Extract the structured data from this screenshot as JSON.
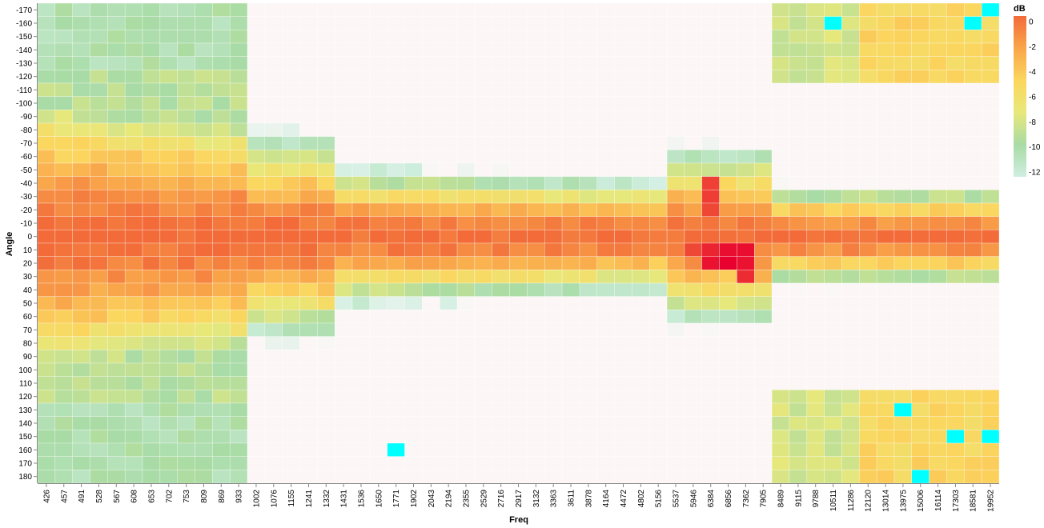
{
  "chart_data": {
    "type": "heatmap",
    "x_label": "Freq",
    "y_label": "Angle",
    "x_categories": [
      "426",
      "457",
      "491",
      "528",
      "567",
      "608",
      "653",
      "702",
      "753",
      "809",
      "869",
      "933",
      "1002",
      "1076",
      "1155",
      "1241",
      "1332",
      "1431",
      "1536",
      "1650",
      "1771",
      "1902",
      "2043",
      "2194",
      "2355",
      "2529",
      "2716",
      "2917",
      "3132",
      "3363",
      "3611",
      "3878",
      "4164",
      "4472",
      "4802",
      "5156",
      "5537",
      "5946",
      "6384",
      "6856",
      "7362",
      "7905",
      "8489",
      "9115",
      "9788",
      "10511",
      "11286",
      "12120",
      "13014",
      "13975",
      "15006",
      "16114",
      "17303",
      "18581",
      "19952"
    ],
    "y_categories": [
      "-170",
      "-160",
      "-150",
      "-140",
      "-130",
      "-120",
      "-110",
      "-100",
      "-90",
      "-80",
      "-70",
      "-60",
      "-50",
      "-40",
      "-30",
      "-20",
      "-10",
      "0",
      "10",
      "20",
      "30",
      "40",
      "50",
      "60",
      "70",
      "80",
      "90",
      "100",
      "110",
      "120",
      "130",
      "140",
      "150",
      "160",
      "170",
      "180"
    ],
    "color_legend": {
      "title": "dB",
      "ticks": [
        "0",
        "-2",
        "-4",
        "-6",
        "-8",
        "-10",
        "-12"
      ],
      "domain": [
        -12,
        0
      ],
      "range_colors": [
        "#cfeee0",
        "#a8dba5",
        "#e8e87a",
        "#fbd65e",
        "#f9a54a",
        "#f26b39"
      ],
      "over_color": "#e8002e",
      "under_color": "#00ffff"
    },
    "hot_cells": [
      {
        "x": "6384",
        "y": "-40",
        "value": 1.2
      },
      {
        "x": "6384",
        "y": "-30",
        "value": 1.3
      },
      {
        "x": "6384",
        "y": "-20",
        "value": 1.0
      },
      {
        "x": "6384",
        "y": "10",
        "value": 2.0
      },
      {
        "x": "6384",
        "y": "20",
        "value": 2.5
      },
      {
        "x": "6856",
        "y": "10",
        "value": 2.6
      },
      {
        "x": "6856",
        "y": "20",
        "value": 3.0
      },
      {
        "x": "7362",
        "y": "10",
        "value": 2.6
      },
      {
        "x": "7362",
        "y": "20",
        "value": 2.5
      },
      {
        "x": "7362",
        "y": "30",
        "value": 1.8
      },
      {
        "x": "5946",
        "y": "10",
        "value": 1.0
      }
    ],
    "cold_cells": [
      {
        "x": "10511",
        "y": "-160",
        "value": -20
      },
      {
        "x": "19952",
        "y": "-170",
        "value": -14
      },
      {
        "x": "18581",
        "y": "-160",
        "value": -14
      },
      {
        "x": "1771",
        "y": "160",
        "value": -16
      },
      {
        "x": "13975",
        "y": "130",
        "value": -15
      },
      {
        "x": "17303",
        "y": "150",
        "value": -14
      },
      {
        "x": "19952",
        "y": "150",
        "value": -20
      },
      {
        "x": "15006",
        "y": "180",
        "value": -15
      }
    ]
  }
}
